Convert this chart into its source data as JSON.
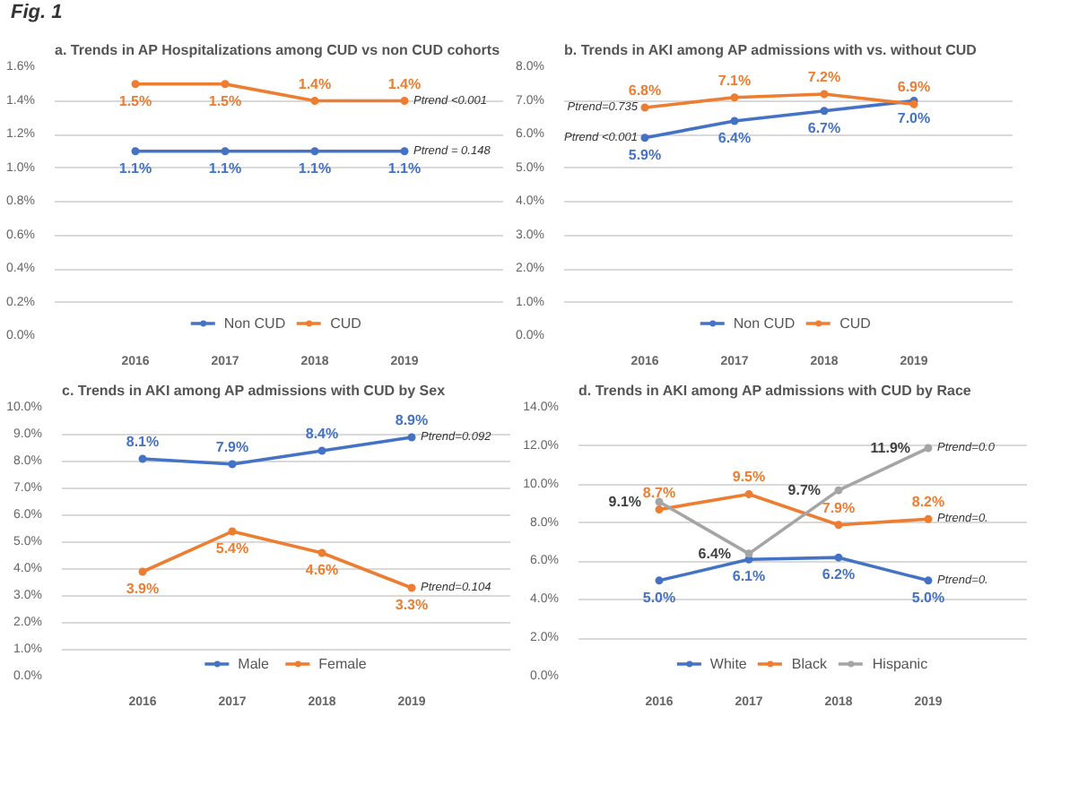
{
  "chart_data": [
    {
      "type": "line",
      "title": "Trends in AP Hospitalizations among CUD vs non CUD cohorts",
      "annotations": [
        "Fig. 1",
        "a.",
        {
          "text": "Ptrend <0.001",
          "x": "2019",
          "y": 1.4
        },
        {
          "text": "Ptrend = 0.148",
          "x": "2019",
          "y": 1.1
        }
      ],
      "categories": [
        "2016",
        "2017",
        "2018",
        "2019"
      ],
      "series": [
        {
          "name": "Non CUD",
          "color": "#4472c4",
          "values": [
            1.1,
            1.1,
            1.1,
            1.1
          ],
          "value_labels": [
            "1.1%",
            "1.1%",
            "1.1%",
            "1.1%"
          ]
        },
        {
          "name": "CUD",
          "color": "#ed7d31",
          "values": [
            1.5,
            1.5,
            1.4,
            1.4
          ],
          "value_labels": [
            "1.5%",
            "1.5%",
            "1.4%",
            "1.4%"
          ]
        }
      ],
      "ylim": [
        0,
        1.6
      ],
      "yticks": [
        {
          "value": 0,
          "label": "0.0%"
        },
        {
          "value": 0.2,
          "label": "0.2%"
        },
        {
          "value": 0.4,
          "label": "0.4%"
        },
        {
          "value": 0.6,
          "label": "0.6%"
        },
        {
          "value": 0.8,
          "label": "0.8%"
        },
        {
          "value": 1.0,
          "label": "1.0%"
        },
        {
          "value": 1.2,
          "label": "1.2%"
        },
        {
          "value": 1.4,
          "label": "1.4%"
        },
        {
          "value": 1.6,
          "label": "1.6%"
        }
      ],
      "grid": "y",
      "legend": "bottom",
      "marker": "circle",
      "line_style": "solid"
    },
    {
      "type": "line",
      "title": "Trends in AKI among AP admissions  with vs. without CUD",
      "annotations": [
        "b.",
        {
          "text": "Ptrend=0.735",
          "x": "2016",
          "y": 6.8
        },
        {
          "text": "Ptrend <0.001",
          "x": "2016",
          "y": 5.9
        }
      ],
      "categories": [
        "2016",
        "2017",
        "2018",
        "2019"
      ],
      "series": [
        {
          "name": "Non CUD",
          "color": "#4472c4",
          "values": [
            5.9,
            6.4,
            6.7,
            7.0
          ],
          "value_labels": [
            "5.9%",
            "6.4%",
            "6.7%",
            "7.0%"
          ]
        },
        {
          "name": "CUD",
          "color": "#ed7d31",
          "values": [
            6.8,
            7.1,
            7.2,
            6.9
          ],
          "value_labels": [
            "6.8%",
            "7.1%",
            "7.2%",
            "6.9%"
          ]
        }
      ],
      "ylim": [
        0,
        8
      ],
      "yticks": [
        {
          "value": 0,
          "label": "0.0%"
        },
        {
          "value": 1,
          "label": "1.0%"
        },
        {
          "value": 2,
          "label": "2.0%"
        },
        {
          "value": 3,
          "label": "3.0%"
        },
        {
          "value": 4,
          "label": "4.0%"
        },
        {
          "value": 5,
          "label": "5.0%"
        },
        {
          "value": 6,
          "label": "6.0%"
        },
        {
          "value": 7,
          "label": "7.0%"
        },
        {
          "value": 8,
          "label": "8.0%"
        }
      ],
      "grid": "y",
      "legend": "bottom",
      "marker": "circle",
      "line_style": "solid"
    },
    {
      "type": "line",
      "title": "Trends in AKI among  AP admissions  with CUD by Sex",
      "annotations": [
        "c.",
        {
          "text": "Ptrend=0.092",
          "x": "2019",
          "y": 8.9
        },
        {
          "text": "Ptrend=0.104",
          "x": "2019",
          "y": 3.3
        }
      ],
      "categories": [
        "2016",
        "2017",
        "2018",
        "2019"
      ],
      "series": [
        {
          "name": "Male",
          "color": "#4472c4",
          "values": [
            8.1,
            7.9,
            8.4,
            8.9
          ],
          "value_labels": [
            "8.1%",
            "7.9%",
            "8.4%",
            "8.9%"
          ]
        },
        {
          "name": "Female",
          "color": "#ed7d31",
          "values": [
            3.9,
            5.4,
            4.6,
            3.3
          ],
          "value_labels": [
            "3.9%",
            "5.4%",
            "4.6%",
            "3.3%"
          ]
        }
      ],
      "ylim": [
        0,
        10
      ],
      "yticks": [
        {
          "value": 0,
          "label": "0.0%"
        },
        {
          "value": 1,
          "label": "1.0%"
        },
        {
          "value": 2,
          "label": "2.0%"
        },
        {
          "value": 3,
          "label": "3.0%"
        },
        {
          "value": 4,
          "label": "4.0%"
        },
        {
          "value": 5,
          "label": "5.0%"
        },
        {
          "value": 6,
          "label": "6.0%"
        },
        {
          "value": 7,
          "label": "7.0%"
        },
        {
          "value": 8,
          "label": "8.0%"
        },
        {
          "value": 9,
          "label": "9.0%"
        },
        {
          "value": 10,
          "label": "10.0%"
        }
      ],
      "grid": "y",
      "legend": "bottom",
      "marker": "circle",
      "line_style": "solid"
    },
    {
      "type": "line",
      "title": "Trends in AKI among AP admissions  with CUD by Race",
      "annotations": [
        "d.",
        {
          "text": "Ptrend=0.0",
          "x": "2019",
          "y": 11.9
        },
        {
          "text": "Ptrend=0.",
          "x": "2019",
          "y": 8.2
        },
        {
          "text": "Ptrend=0.",
          "x": "2019",
          "y": 5.0
        }
      ],
      "categories": [
        "2016",
        "2017",
        "2018",
        "2019"
      ],
      "series": [
        {
          "name": "White",
          "color": "#4472c4",
          "values": [
            5.0,
            6.1,
            6.2,
            5.0
          ],
          "value_labels": [
            "5.0%",
            "6.1%",
            "6.2%",
            "5.0%"
          ]
        },
        {
          "name": "Black",
          "color": "#ed7d31",
          "values": [
            8.7,
            9.5,
            7.9,
            8.2
          ],
          "value_labels": [
            "8.7%",
            "9.5%",
            "7.9%",
            "8.2%"
          ]
        },
        {
          "name": "Hispanic",
          "color": "#a5a5a5",
          "values": [
            9.1,
            6.4,
            9.7,
            11.9
          ],
          "value_labels": [
            "9.1%",
            "6.4%",
            "9.7%",
            "11.9%"
          ]
        }
      ],
      "ylim": [
        0,
        14
      ],
      "yticks": [
        {
          "value": 0,
          "label": "0.0%"
        },
        {
          "value": 2,
          "label": "2.0%"
        },
        {
          "value": 4,
          "label": "4.0%"
        },
        {
          "value": 6,
          "label": "6.0%"
        },
        {
          "value": 8,
          "label": "8.0%"
        },
        {
          "value": 10,
          "label": "10.0%"
        },
        {
          "value": 12,
          "label": "12.0%"
        },
        {
          "value": 14,
          "label": "14.0%"
        }
      ],
      "grid": "y",
      "legend": "bottom",
      "marker": "circle",
      "line_style": "solid"
    }
  ]
}
